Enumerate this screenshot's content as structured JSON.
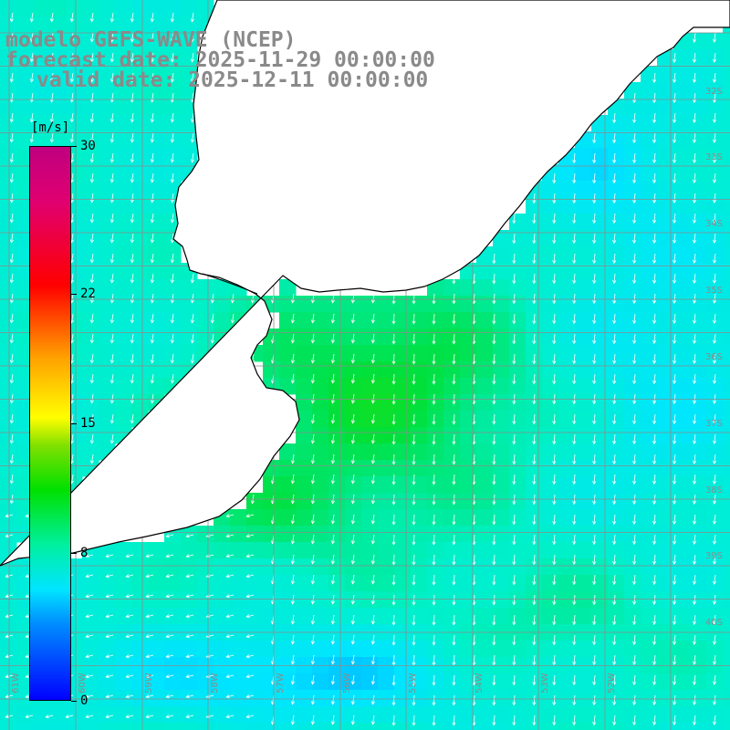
{
  "title": {
    "line1": "modelo GEFS-WAVE (NCEP)",
    "line2": "forecast date: 2025-11-29 00:00:00",
    "line3": "valid date: 2025-12-11 00:00:00"
  },
  "colorbar": {
    "unit": "[m/s]",
    "ticks": [
      {
        "label": "30",
        "value": 30
      },
      {
        "label": "22",
        "value": 22
      },
      {
        "label": "15",
        "value": 15
      },
      {
        "label": "8",
        "value": 8
      },
      {
        "label": "0",
        "value": 0
      }
    ],
    "min": 0,
    "max": 30
  },
  "map": {
    "variable": "wind speed",
    "colors": {
      "land": "#ffffff",
      "coast": "#000000",
      "grid": "#8c8c8c",
      "arrows": "#ffffff"
    },
    "lat_labels": [
      "32S",
      "33S",
      "34S",
      "35S",
      "36S",
      "37S",
      "38S",
      "39S",
      "40S"
    ],
    "lon_labels": [
      "61W",
      "60W",
      "59W",
      "58W",
      "57W",
      "56W",
      "55W",
      "54W",
      "53W",
      "52W"
    ]
  }
}
